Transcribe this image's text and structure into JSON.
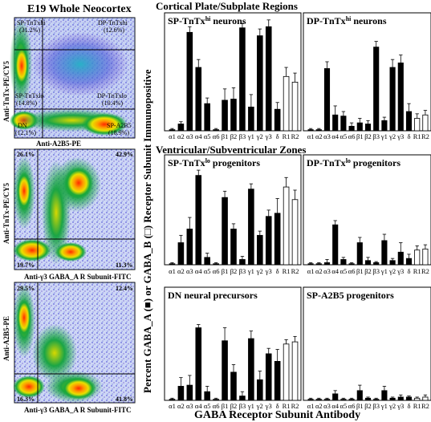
{
  "figure": {
    "left_title": "E19 Whole Neocortex",
    "top_section": "Cortical Plate/Subplate Regions",
    "mid_section": "Ventricular/Subventricular Zones",
    "y_axis_label": "Percent GABA_A (■) or GABA_B (□) Receptor Subunit Immunopositive",
    "x_axis_label": "GABA Receptor Subunit Antibody"
  },
  "flow_panels": [
    {
      "y_label": "Anti-TnTx-PE/CY5",
      "x_label": "Anti-A2B5-PE",
      "quadrants": [
        {
          "name": "SP-TnTxhi",
          "pct": "(31.2%)"
        },
        {
          "name": "DP-TnTxhi",
          "pct": "(12.6%)"
        },
        {
          "name": "SP-TnTxlo",
          "pct": "(14.8%)"
        },
        {
          "name": "DP-TnTxlo",
          "pct": "(10.4%)"
        },
        {
          "name": "DN",
          "pct": "(12.1%)"
        },
        {
          "name": "SP-A2B5",
          "pct": "(18.9%)"
        }
      ]
    },
    {
      "y_label": "Anti-TnTx-PE/CY5",
      "x_label": "Anti-γ3 GABA_A R Subunit-FITC",
      "corner_pcts": {
        "tl": "26.1%",
        "tr": "42.9%",
        "bl": "19.7%",
        "br": "11.3%"
      }
    },
    {
      "y_label": "Anti-A2B5-PE",
      "x_label": "Anti-γ3 GABA_A R Subunit-FITC",
      "corner_pcts": {
        "tl": "29.5%",
        "tr": "12.4%",
        "bl": "16.3%",
        "br": "41.8%"
      }
    }
  ],
  "chart_data": {
    "type": "bar",
    "categories": [
      "α1",
      "α2",
      "α3",
      "α4",
      "α5",
      "α6",
      "β1",
      "β2",
      "β3",
      "γ1",
      "γ2",
      "γ3",
      "δ",
      "R1",
      "R2"
    ],
    "ylim": [
      0,
      100
    ],
    "ylabel": "Percent GABA_A (■) or GABA_B (□) Receptor Subunit Immunopositive",
    "xlabel": "GABA Receptor Subunit Antibody",
    "open_bars": [
      "R1",
      "R2"
    ],
    "panels": [
      {
        "title": "SP-TnTx^hi neurons",
        "values": [
          1,
          6,
          87,
          56,
          24,
          1,
          27,
          28,
          91,
          21,
          84,
          92,
          19,
          48,
          43
        ],
        "errors": [
          1,
          2,
          5,
          7,
          5,
          1,
          10,
          10,
          4,
          11,
          6,
          6,
          6,
          8,
          8
        ]
      },
      {
        "title": "DP-TnTx^hi neurons",
        "values": [
          1,
          1,
          55,
          14,
          13,
          4,
          7,
          6,
          74,
          9,
          56,
          60,
          17,
          11,
          14
        ],
        "errors": [
          1,
          1,
          6,
          8,
          4,
          3,
          4,
          3,
          5,
          3,
          7,
          7,
          7,
          4,
          4
        ]
      },
      {
        "title": "SP-TnTx^lo progenitors",
        "values": [
          1,
          21,
          34,
          85,
          7,
          1,
          64,
          34,
          5,
          72,
          28,
          46,
          49,
          74,
          62
        ],
        "errors": [
          1,
          7,
          11,
          5,
          4,
          1,
          6,
          5,
          3,
          5,
          4,
          6,
          14,
          9,
          9
        ]
      },
      {
        "title": "DP-TnTx^lo progenitors",
        "values": [
          1,
          1,
          2,
          38,
          5,
          1,
          21,
          4,
          2,
          23,
          4,
          12,
          6,
          14,
          15
        ],
        "errors": [
          1,
          1,
          3,
          4,
          2,
          1,
          5,
          3,
          1,
          6,
          2,
          9,
          4,
          4,
          4
        ]
      },
      {
        "title": "DN neural precursors",
        "values": [
          1,
          13,
          14,
          67,
          8,
          1,
          55,
          26,
          4,
          57,
          19,
          43,
          36,
          52,
          54
        ],
        "errors": [
          1,
          8,
          9,
          3,
          5,
          1,
          12,
          7,
          4,
          7,
          8,
          5,
          11,
          4,
          5
        ]
      },
      {
        "title": "SP-A2B5 progenitors",
        "values": [
          1,
          1,
          1,
          6,
          1,
          1,
          9,
          2,
          1,
          9,
          2,
          3,
          3,
          2,
          3
        ],
        "errors": [
          1,
          1,
          1,
          3,
          1,
          1,
          5,
          1,
          1,
          4,
          1,
          2,
          1,
          1,
          2
        ]
      }
    ]
  }
}
